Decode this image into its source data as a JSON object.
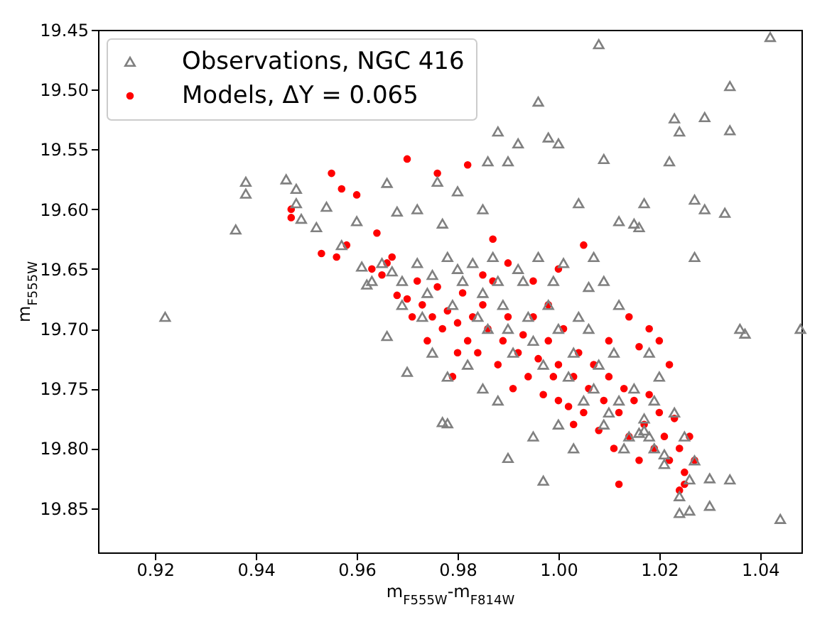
{
  "chart_data": {
    "type": "scatter",
    "xlabel": "m$_{F555W}$-m$_{F814W}$",
    "ylabel": "m$_{F555W}$",
    "xlim": [
      0.9087,
      1.0482
    ],
    "ylim": [
      19.887,
      19.45
    ],
    "xticks": [
      0.92,
      0.94,
      0.96,
      0.98,
      {
        "value": 1.0,
        "label": "1.00"
      },
      1.02,
      1.04
    ],
    "yticks": [
      19.45,
      {
        "value": 19.5,
        "label": "19.50"
      },
      19.55,
      {
        "value": 19.6,
        "label": "19.60"
      },
      19.65,
      {
        "value": 19.7,
        "label": "19.70"
      },
      19.75,
      {
        "value": 19.8,
        "label": "19.80"
      },
      19.85
    ],
    "grid": false,
    "legend": "top left",
    "series": [
      {
        "name": "Observations, NGC 416",
        "color": "#808080",
        "marker": "triangle",
        "x": [
          0.922,
          0.936,
          0.938,
          0.938,
          0.946,
          0.948,
          0.948,
          0.949,
          0.952,
          0.954,
          0.957,
          0.96,
          0.962,
          0.966,
          0.966,
          0.968,
          0.97,
          0.972,
          0.976,
          0.977,
          0.98,
          0.985,
          0.986,
          0.988,
          0.99,
          0.992,
          0.996,
          0.998,
          1.0,
          1.008,
          1.009,
          1.004,
          1.017,
          1.023,
          1.024,
          1.022,
          1.029,
          1.034,
          1.034,
          1.042,
          1.027,
          1.029,
          1.033,
          1.012,
          1.015,
          1.016,
          1.007,
          1.027,
          1.036,
          1.037,
          1.048,
          0.977,
          0.978,
          0.99,
          0.997,
          1.024,
          1.024,
          1.026,
          1.03,
          1.034,
          1.044,
          1.03,
          1.026,
          1.021,
          1.019,
          1.018,
          1.016,
          1.017,
          0.961,
          0.963,
          0.965,
          0.967,
          0.969,
          0.972,
          0.974,
          0.975,
          0.978,
          0.979,
          0.98,
          0.981,
          0.983,
          0.984,
          0.985,
          0.986,
          0.987,
          0.988,
          0.989,
          0.99,
          0.991,
          0.992,
          0.993,
          0.994,
          0.995,
          0.996,
          0.997,
          0.998,
          0.999,
          1.0,
          1.001,
          1.002,
          1.003,
          1.004,
          1.005,
          1.006,
          1.007,
          1.008,
          1.009,
          1.01,
          1.011,
          1.012,
          1.013,
          1.014,
          1.015,
          1.017,
          1.019,
          1.021,
          1.023,
          1.025,
          1.027,
          1.006,
          1.009,
          0.975,
          0.978,
          0.982,
          0.985,
          0.995,
          1.0,
          1.003,
          0.988,
          0.969,
          0.973,
          1.012,
          1.018,
          1.02
        ],
        "values": [
          19.69,
          19.617,
          19.577,
          19.587,
          19.575,
          19.583,
          19.595,
          19.608,
          19.615,
          19.598,
          19.63,
          19.61,
          19.663,
          19.578,
          19.706,
          19.602,
          19.736,
          19.6,
          19.577,
          19.612,
          19.585,
          19.6,
          19.56,
          19.535,
          19.56,
          19.545,
          19.51,
          19.54,
          19.545,
          19.462,
          19.558,
          19.595,
          19.595,
          19.524,
          19.535,
          19.56,
          19.523,
          19.497,
          19.534,
          19.456,
          19.592,
          19.6,
          19.603,
          19.61,
          19.612,
          19.615,
          19.64,
          19.64,
          19.7,
          19.704,
          19.7,
          19.778,
          19.779,
          19.808,
          19.827,
          19.84,
          19.854,
          19.852,
          19.848,
          19.826,
          19.859,
          19.825,
          19.826,
          19.813,
          19.8,
          19.79,
          19.787,
          19.785,
          19.648,
          19.66,
          19.645,
          19.652,
          19.66,
          19.645,
          19.67,
          19.655,
          19.64,
          19.68,
          19.65,
          19.66,
          19.645,
          19.69,
          19.67,
          19.7,
          19.64,
          19.66,
          19.68,
          19.7,
          19.72,
          19.65,
          19.66,
          19.69,
          19.71,
          19.64,
          19.73,
          19.68,
          19.66,
          19.7,
          19.645,
          19.74,
          19.72,
          19.69,
          19.76,
          19.7,
          19.75,
          19.73,
          19.78,
          19.77,
          19.72,
          19.76,
          19.8,
          19.79,
          19.75,
          19.775,
          19.76,
          19.805,
          19.77,
          19.79,
          19.81,
          19.665,
          19.66,
          19.72,
          19.74,
          19.73,
          19.75,
          19.79,
          19.78,
          19.8,
          19.76,
          19.68,
          19.69,
          19.68,
          19.72,
          19.74
        ]
      },
      {
        "name": "Models, ΔY = 0.065",
        "color": "#ff0000",
        "marker": "circle",
        "x": [
          0.947,
          0.947,
          0.953,
          0.956,
          0.958,
          0.955,
          0.957,
          0.96,
          0.964,
          0.966,
          0.97,
          0.976,
          0.982,
          0.967,
          0.965,
          0.968,
          0.97,
          0.972,
          0.973,
          0.975,
          0.976,
          0.977,
          0.978,
          0.98,
          0.981,
          0.982,
          0.983,
          0.984,
          0.985,
          0.986,
          0.987,
          0.988,
          0.989,
          0.99,
          0.991,
          0.992,
          0.993,
          0.994,
          0.995,
          0.996,
          0.997,
          0.998,
          0.999,
          1.0,
          1.001,
          1.002,
          1.003,
          1.004,
          1.005,
          1.006,
          1.007,
          1.008,
          1.009,
          1.01,
          1.011,
          1.012,
          1.013,
          1.014,
          1.015,
          1.016,
          1.017,
          1.018,
          1.019,
          1.02,
          1.021,
          1.022,
          1.023,
          1.024,
          1.025,
          1.026,
          1.027,
          1.018,
          1.016,
          1.014,
          1.02,
          1.022,
          1.01,
          0.998,
          0.995,
          1.0,
          0.99,
          0.985,
          0.987,
          1.005,
          0.98,
          0.979,
          1.003,
          1.0,
          1.012,
          1.025,
          1.024,
          0.963,
          0.971,
          0.974
        ],
        "values": [
          19.6,
          19.607,
          19.637,
          19.64,
          19.63,
          19.57,
          19.583,
          19.588,
          19.62,
          19.645,
          19.558,
          19.57,
          19.563,
          19.64,
          19.655,
          19.672,
          19.675,
          19.66,
          19.68,
          19.69,
          19.665,
          19.7,
          19.685,
          19.695,
          19.67,
          19.71,
          19.69,
          19.72,
          19.68,
          19.7,
          19.66,
          19.73,
          19.71,
          19.69,
          19.75,
          19.72,
          19.705,
          19.74,
          19.69,
          19.725,
          19.755,
          19.71,
          19.74,
          19.73,
          19.7,
          19.765,
          19.74,
          19.72,
          19.77,
          19.75,
          19.73,
          19.785,
          19.76,
          19.74,
          19.8,
          19.77,
          19.75,
          19.79,
          19.76,
          19.81,
          19.78,
          19.755,
          19.8,
          19.77,
          19.79,
          19.81,
          19.775,
          19.8,
          19.82,
          19.79,
          19.81,
          19.7,
          19.715,
          19.69,
          19.71,
          19.73,
          19.71,
          19.68,
          19.66,
          19.65,
          19.645,
          19.655,
          19.625,
          19.63,
          19.72,
          19.74,
          19.78,
          19.76,
          19.83,
          19.83,
          19.835,
          19.65,
          19.69,
          19.71
        ]
      }
    ]
  }
}
